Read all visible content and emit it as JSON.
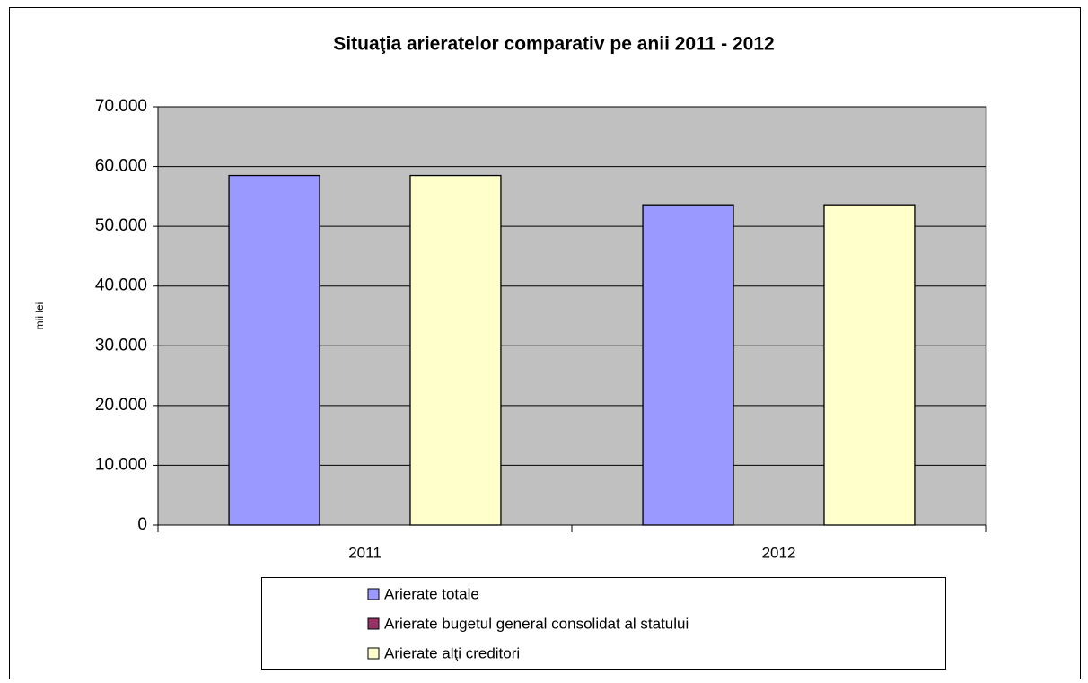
{
  "chart_data": {
    "type": "bar",
    "title": "Situaţia arieratelor comparativ pe anii 2011 - 2012",
    "y_label": "mii lei",
    "categories": [
      "2011",
      "2012"
    ],
    "series": [
      {
        "name": "Arierate totale",
        "color": "#9999ff",
        "values": [
          58500,
          53600
        ]
      },
      {
        "name": "Arierate bugetul general consolidat al statului",
        "color": "#993366",
        "values": [
          0,
          0
        ]
      },
      {
        "name": "Arierate alţi creditori",
        "color": "#ffffcc",
        "values": [
          58500,
          53600
        ]
      }
    ],
    "ylim": [
      0,
      70000
    ],
    "yticks": [
      0,
      {
        "value": 10000,
        "label": "10.000"
      },
      {
        "value": 20000,
        "label": "20.000"
      },
      {
        "value": 30000,
        "label": "30.000"
      },
      {
        "value": 40000,
        "label": "40.000"
      },
      {
        "value": 50000,
        "label": "50.000"
      },
      {
        "value": 60000,
        "label": "60.000"
      },
      {
        "value": 70000,
        "label": "70.000"
      }
    ],
    "grid": true,
    "plot_background": "#c0c0c0",
    "legend": "bottom"
  }
}
